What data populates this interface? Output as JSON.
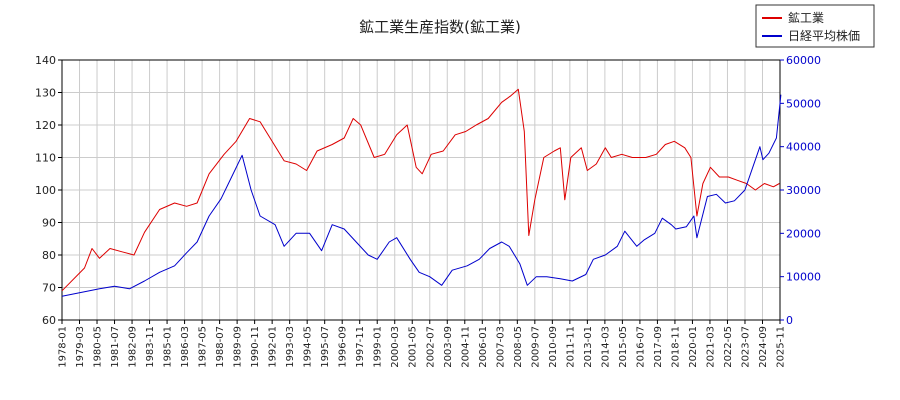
{
  "chart_data": {
    "type": "line",
    "title": "鉱工業生産指数(鉱工業)",
    "legend_position": "top-right",
    "grid": true,
    "left_axis": {
      "ylim": [
        60,
        140
      ],
      "ticks": [
        60,
        70,
        80,
        90,
        100,
        110,
        120,
        130,
        140
      ]
    },
    "right_axis": {
      "ylim": [
        0,
        60000
      ],
      "ticks": [
        0,
        10000,
        20000,
        30000,
        40000,
        50000,
        60000
      ],
      "color": "#0000cc"
    },
    "x_ticks": [
      "1978-01",
      "1979-03",
      "1980-05",
      "1981-07",
      "1982-09",
      "1983-11",
      "1985-01",
      "1986-03",
      "1987-05",
      "1988-07",
      "1989-09",
      "1990-11",
      "1992-01",
      "1993-03",
      "1994-05",
      "1995-07",
      "1996-09",
      "1997-11",
      "1999-01",
      "2000-03",
      "2001-05",
      "2002-07",
      "2003-09",
      "2004-11",
      "2006-01",
      "2007-03",
      "2008-05",
      "2009-07",
      "2010-09",
      "2011-11",
      "2013-01",
      "2014-03",
      "2015-05",
      "2016-07",
      "2017-09",
      "2018-11",
      "2020-01",
      "2021-03",
      "2022-05",
      "2023-07",
      "2024-09",
      "2025-11"
    ],
    "series": [
      {
        "name": "鉱工業",
        "axis": "left",
        "color": "#dd0000",
        "x": [
          1978.0,
          1979.5,
          1980.0,
          1980.5,
          1981.2,
          1982.0,
          1982.8,
          1983.5,
          1984.5,
          1985.5,
          1986.3,
          1987.0,
          1987.8,
          1988.8,
          1989.6,
          1990.5,
          1991.2,
          1992.0,
          1992.8,
          1993.6,
          1994.3,
          1995.0,
          1996.0,
          1996.8,
          1997.4,
          1997.9,
          1998.8,
          1999.5,
          2000.3,
          2001.0,
          2001.6,
          2002.0,
          2002.6,
          2003.4,
          2004.2,
          2004.9,
          2005.6,
          2006.4,
          2007.3,
          2007.9,
          2008.4,
          2008.8,
          2009.1,
          2009.5,
          2010.1,
          2010.8,
          2011.2,
          2011.5,
          2011.9,
          2012.6,
          2013.0,
          2013.6,
          2014.2,
          2014.6,
          2015.3,
          2016.0,
          2016.9,
          2017.6,
          2018.2,
          2018.8,
          2019.5,
          2019.9,
          2020.3,
          2020.7,
          2021.2,
          2021.8,
          2022.4,
          2023.0,
          2023.6,
          2024.2,
          2024.8,
          2025.4,
          2025.8
        ],
        "values": [
          69,
          76,
          82,
          79,
          82,
          81,
          80,
          87,
          94,
          96,
          95,
          96,
          105,
          111,
          115,
          122,
          121,
          115,
          109,
          108,
          106,
          112,
          114,
          116,
          122,
          120,
          110,
          111,
          117,
          120,
          107,
          105,
          111,
          112,
          117,
          118,
          120,
          122,
          127,
          129,
          131,
          118,
          86,
          97,
          110,
          112,
          113,
          97,
          110,
          113,
          106,
          108,
          113,
          110,
          111,
          110,
          110,
          111,
          114,
          115,
          113,
          110,
          92,
          102,
          107,
          104,
          104,
          103,
          102,
          100,
          102,
          101,
          102
        ]
      },
      {
        "name": "日経平均株価",
        "axis": "right",
        "color": "#0000cc",
        "x": [
          1978.0,
          1979.5,
          1980.5,
          1981.5,
          1982.5,
          1983.5,
          1984.5,
          1985.5,
          1986.3,
          1987.0,
          1987.8,
          1988.6,
          1989.3,
          1990.0,
          1990.6,
          1991.2,
          1992.2,
          1992.8,
          1993.6,
          1994.5,
          1995.3,
          1996.0,
          1996.8,
          1997.6,
          1998.4,
          1999.0,
          1999.8,
          2000.3,
          2001.2,
          2001.8,
          2002.5,
          2003.3,
          2004.0,
          2005.0,
          2005.8,
          2006.5,
          2007.3,
          2007.8,
          2008.5,
          2009.0,
          2009.6,
          2010.3,
          2011.2,
          2012.0,
          2012.9,
          2013.4,
          2014.2,
          2015.0,
          2015.5,
          2016.3,
          2016.8,
          2017.5,
          2018.0,
          2018.6,
          2018.9,
          2019.6,
          2020.1,
          2020.3,
          2021.0,
          2021.6,
          2022.2,
          2022.8,
          2023.5,
          2024.0,
          2024.5,
          2024.7,
          2025.1,
          2025.6,
          2025.9
        ],
        "values": [
          5500,
          6500,
          7200,
          7800,
          7200,
          9000,
          11000,
          12500,
          15500,
          18000,
          24000,
          28000,
          33000,
          38000,
          30000,
          24000,
          22000,
          17000,
          20000,
          20000,
          16000,
          22000,
          21000,
          18000,
          15000,
          14000,
          18000,
          19000,
          14000,
          11000,
          10000,
          8000,
          11500,
          12500,
          14000,
          16500,
          18000,
          17000,
          13000,
          8000,
          10000,
          10000,
          9500,
          9000,
          10500,
          14000,
          15000,
          17000,
          20500,
          17000,
          18500,
          20000,
          23500,
          22000,
          21000,
          21500,
          24000,
          19000,
          28500,
          29000,
          27000,
          27500,
          30000,
          35000,
          40000,
          37000,
          38500,
          42000,
          52000
        ]
      }
    ]
  }
}
